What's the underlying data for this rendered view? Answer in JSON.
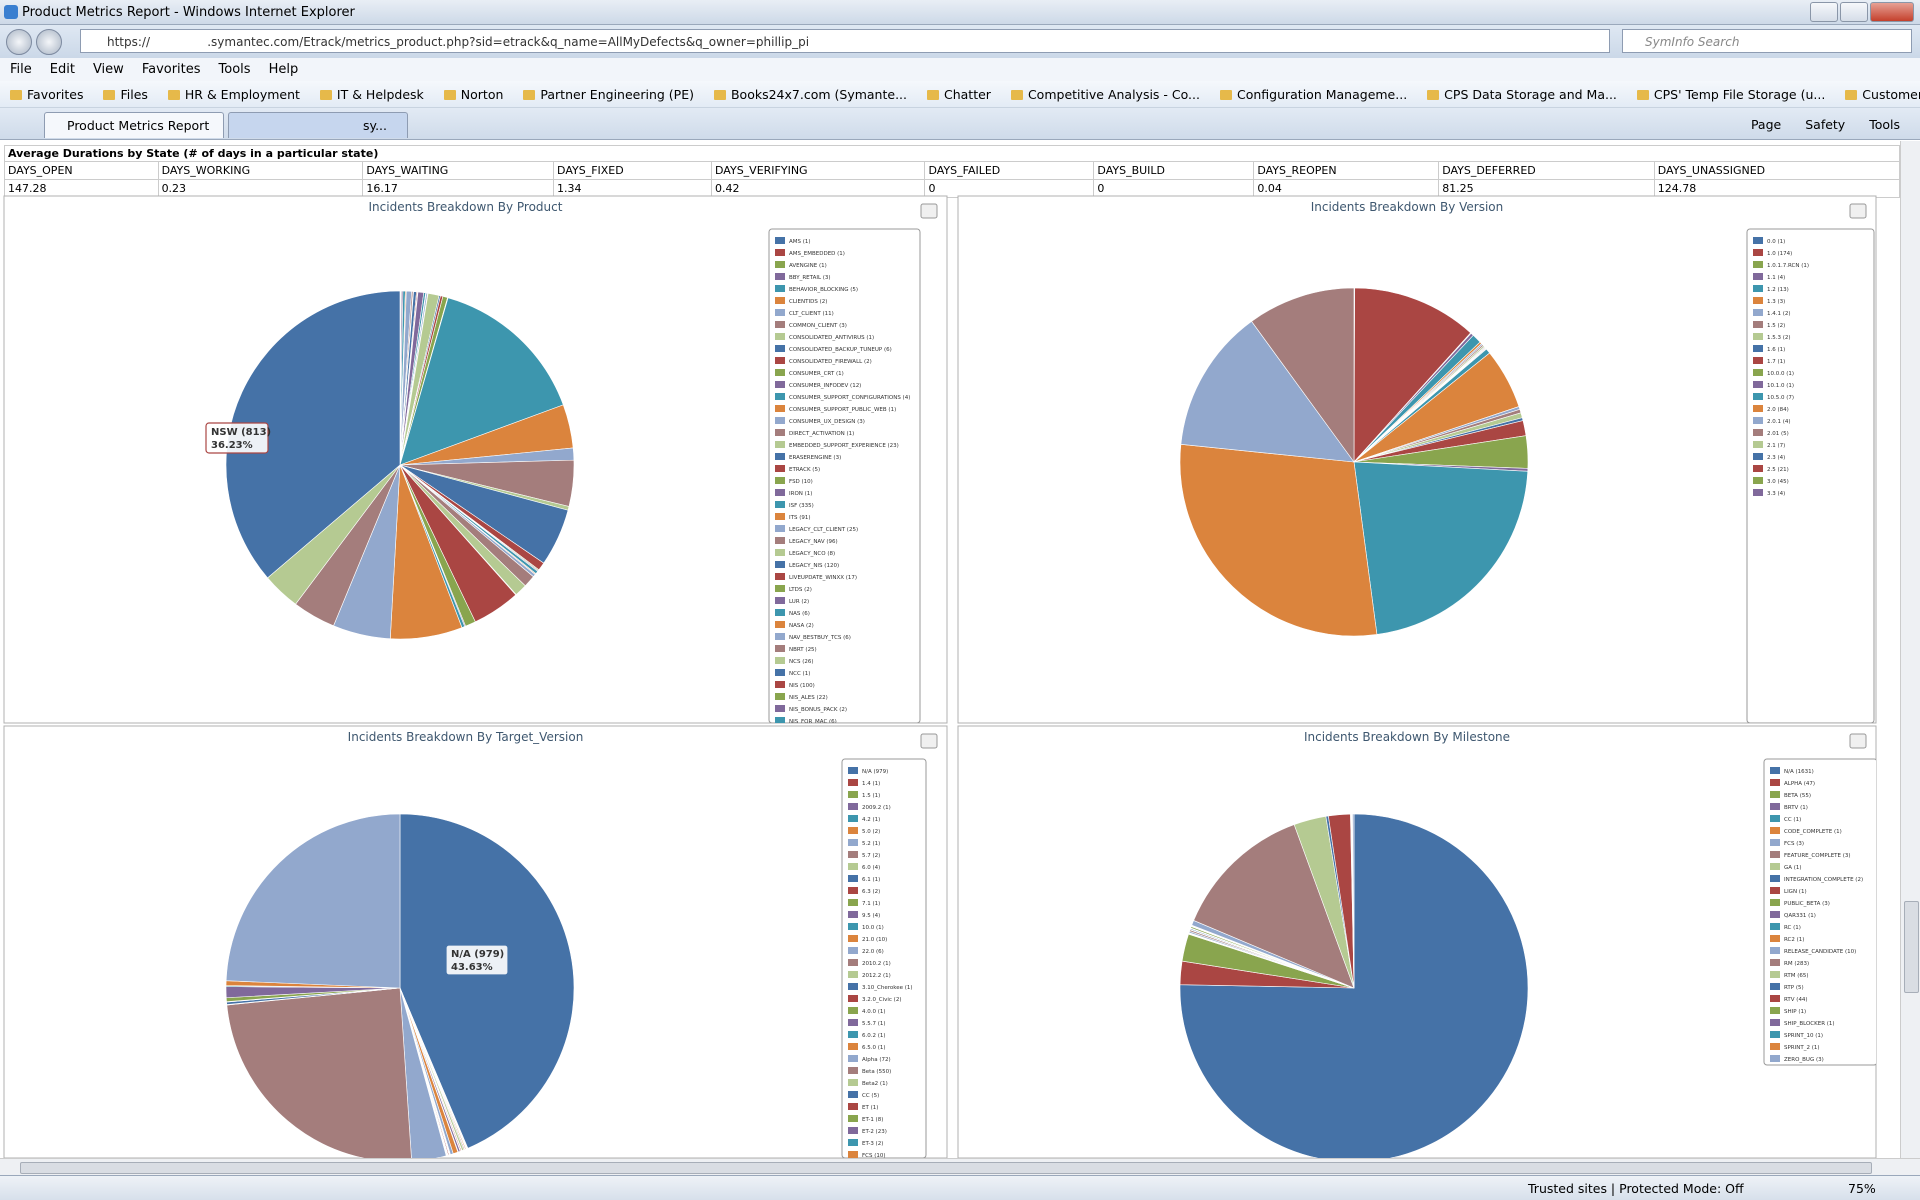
{
  "browser": {
    "title": "Product Metrics Report - Windows Internet Explorer",
    "url": "https://               .symantec.com/Etrack/metrics_product.php?sid=etrack&q_name=AllMyDefects&q_owner=phillip_pi",
    "search": "SymInfo Search",
    "menu": [
      "File",
      "Edit",
      "View",
      "Favorites",
      "Tools",
      "Help"
    ],
    "favorites": [
      "Favorites",
      "Files",
      "HR & Employment",
      "IT & Helpdesk",
      "Norton",
      "Partner Engineering (PE)",
      "Books24x7.com (Symante...",
      "Chatter",
      "Competitive Analysis - Co...",
      "Configuration Manageme...",
      "CPS Data Storage and Ma...",
      "CPS' Temp File Storage (u...",
      "Customer Assistance Tool"
    ],
    "tabs": [
      "Product Metrics Report",
      "sy..."
    ],
    "commands": [
      "Page",
      "Safety",
      "Tools"
    ],
    "status": "Trusted sites | Protected Mode: Off",
    "zoom": "75%"
  },
  "table": {
    "title": "Average Durations by State (# of days in a particular state)",
    "headers": [
      "DAYS_OPEN",
      "DAYS_WORKING",
      "DAYS_WAITING",
      "DAYS_FIXED",
      "DAYS_VERIFYING",
      "DAYS_FAILED",
      "DAYS_BUILD",
      "DAYS_REOPEN",
      "DAYS_DEFERRED",
      "DAYS_UNASSIGNED"
    ],
    "values": [
      147.28,
      0.23,
      16.17,
      1.34,
      0.42,
      0,
      0,
      0.04,
      81.25,
      124.78
    ]
  },
  "palette": [
    "#4572a7",
    "#aa4643",
    "#89a54e",
    "#80699b",
    "#3d96ae",
    "#db843d",
    "#92a8cd",
    "#a47d7c",
    "#b5ca92"
  ],
  "charts": [
    {
      "type": "pie",
      "title": "Incidents Breakdown By Product",
      "categories": [
        "AMS (1)",
        "AMS_EMBEDDED (1)",
        "AVENGINE (1)",
        "BBY_RETAIL (3)",
        "BEHAVIOR_BLOCKING (5)",
        "CLIENTIDS (2)",
        "CLT_CLIENT (11)",
        "COMMON_CLIENT (3)",
        "CONSOLIDATED_ANTIVIRUS (1)",
        "CONSOLIDATED_BACKUP_TUNEUP (6)",
        "CONSOLIDATED_FIREWALL (2)",
        "CONSUMER_CRT (1)",
        "CONSUMER_INFODEV (12)",
        "CONSUMER_SUPPORT_CONFIGURATIONS (4)",
        "CONSUMER_SUPPORT_PUBLIC_WEB (1)",
        "CONSUMER_UX_DESIGN (3)",
        "DIRECT_ACTIVATION (1)",
        "EMBEDDED_SUPPORT_EXPERIENCE (23)",
        "ERASERENGINE (3)",
        "ETRACK (5)",
        "FSD (10)",
        "IRON (1)",
        "ISF (335)",
        "ITS (91)",
        "LEGACY_CLT_CLIENT (25)",
        "LEGACY_NAV (96)",
        "LEGACY_NCO (8)",
        "LEGACY_NIS (120)",
        "LIVEUPDATE_WINXX (17)",
        "LTDS (2)",
        "LUR (2)",
        "NAS (6)",
        "NASA (2)",
        "NAV_BESTBUY_TCS (6)",
        "NBRT (25)",
        "NCS (26)",
        "NCC (1)",
        "NIS (100)",
        "NIS_ALES (22)",
        "NIS_BONUS_PACK (2)",
        "NIS_FOR_MAC (6)",
        null,
        null,
        null,
        null,
        null
      ],
      "values": [
        1,
        1,
        1,
        3,
        5,
        2,
        11,
        3,
        1,
        6,
        2,
        1,
        12,
        4,
        1,
        3,
        1,
        23,
        3,
        5,
        10,
        1,
        335,
        91,
        25,
        96,
        8,
        120,
        17,
        2,
        2,
        6,
        2,
        6,
        25,
        26,
        1,
        100,
        22,
        2,
        6,
        150,
        120,
        90,
        79,
        813
      ],
      "tooltip": {
        "label": "NSW (813)",
        "percent": "36.23%"
      }
    },
    {
      "type": "pie",
      "title": "Incidents Breakdown By Version",
      "categories": [
        "0.0 (1)",
        "1.0 (174)",
        "1.0.1.7.RCN (1)",
        "1.1 (4)",
        "1.2 (13)",
        "1.3 (3)",
        "1.4.1 (2)",
        "1.5 (2)",
        "1.5.3 (2)",
        "1.6 (1)",
        "1.7 (1)",
        "10.0.0 (1)",
        "10.1.0 (1)",
        "10.5.0 (7)",
        "2.0 (84)",
        "2.0.1 (4)",
        "2.01 (5)",
        "2.1 (7)",
        "2.3 (4)",
        "2.5 (21)",
        "3.0 (45)",
        "3.3 (4)",
        null,
        null,
        null,
        null
      ],
      "values": [
        1,
        174,
        1,
        4,
        13,
        3,
        2,
        2,
        2,
        1,
        1,
        1,
        1,
        7,
        84,
        4,
        5,
        7,
        4,
        21,
        45,
        4,
        330,
        430,
        200,
        150
      ]
    },
    {
      "type": "pie",
      "title": "Incidents Breakdown By Target_Version",
      "categories": [
        "N/A (979)",
        "1.4 (1)",
        "1.5 (1)",
        "2009.2 (1)",
        "4.2 (1)",
        "5.0 (2)",
        "5.2 (1)",
        "5.7 (2)",
        "6.0 (4)",
        "6.1 (1)",
        "6.3 (2)",
        "7.1 (1)",
        "9.5 (4)",
        "10.0 (1)",
        "21.0 (10)",
        "22.0 (6)",
        "2010.2 (1)",
        "2012.2 (1)",
        "3.10_Cherokee (1)",
        "3.2.0_Civic (2)",
        "4.0.0 (1)",
        "5.5.7 (1)",
        "6.0.2 (1)",
        "6.5.0 (1)",
        "Alpha (72)",
        "Beta (550)",
        "Beta2 (1)",
        "CC (5)",
        "ET (1)",
        "ET-1 (8)",
        "ET-2 (23)",
        "ET-3 (2)",
        "FCS (10)",
        null
      ],
      "values": [
        979,
        1,
        1,
        1,
        1,
        2,
        1,
        2,
        4,
        1,
        2,
        1,
        4,
        1,
        10,
        6,
        1,
        1,
        1,
        2,
        1,
        1,
        1,
        1,
        72,
        550,
        1,
        5,
        1,
        8,
        23,
        2,
        10,
        546
      ],
      "tooltip": {
        "label": "N/A (979)",
        "percent": "43.63%"
      }
    },
    {
      "type": "pie",
      "title": "Incidents Breakdown By Milestone",
      "categories": [
        "N/A (1631)",
        "ALPHA (47)",
        "BETA (55)",
        "BRTV (1)",
        "CC (1)",
        "CODE_COMPLETE (1)",
        "FCS (3)",
        "FEATURE_COMPLETE (3)",
        "GA (1)",
        "INTEGRATION_COMPLETE (2)",
        "LIGN (1)",
        "PUBLIC_BETA (3)",
        "QAR331 (1)",
        "RC (1)",
        "RC2 (1)",
        "RELEASE_CANDIDATE (10)",
        "RM (283)",
        "RTM (65)",
        "RTP (5)",
        "RTV (44)",
        "SHIP (1)",
        "SHIP_BLOCKER (1)",
        "SPRINT_10 (1)",
        "SPRINT_2 (1)",
        "ZERO_BUG (3)"
      ],
      "values": [
        1631,
        47,
        55,
        1,
        1,
        1,
        3,
        3,
        1,
        2,
        1,
        3,
        1,
        1,
        1,
        10,
        283,
        65,
        5,
        44,
        1,
        1,
        1,
        1,
        3
      ]
    }
  ]
}
